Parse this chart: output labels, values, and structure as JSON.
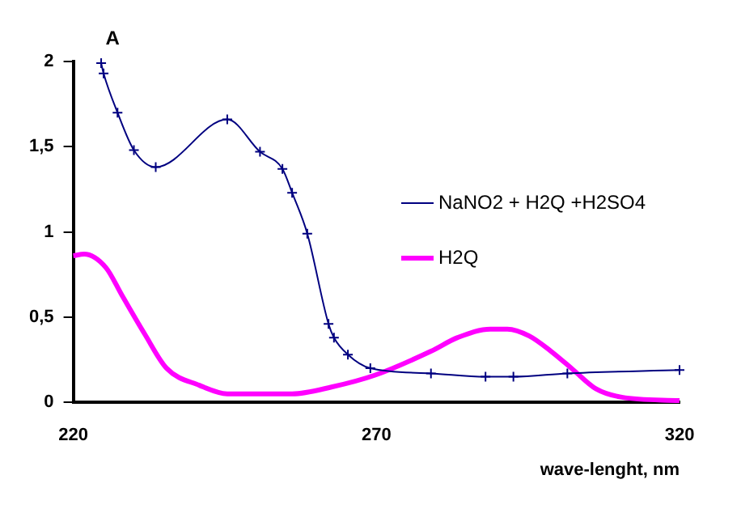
{
  "chart_data": {
    "type": "line",
    "xlabel": "wave-lenght, nm",
    "ylabel": "A",
    "xlim": [
      220,
      320
    ],
    "xticks": [
      220,
      270,
      320
    ],
    "ylim": [
      0,
      2
    ],
    "yticks": [
      0,
      {
        "value": 0.5,
        "label": "0,5"
      },
      1,
      {
        "value": 1.5,
        "label": "1,5"
      },
      2
    ],
    "grid": false,
    "legend": "right",
    "series": [
      {
        "name": "NaNO2 + H2Q +H2SO4",
        "color": "#000080",
        "marker": "cross",
        "x": [
          224.6,
          225,
          227.3,
          230,
          233.6,
          245.4,
          250.8,
          254.5,
          256.1,
          258.6,
          262.1,
          263,
          265.3,
          269,
          279,
          288,
          292.6,
          301.5,
          320
        ],
        "values": [
          1.99,
          1.93,
          1.7,
          1.48,
          1.38,
          1.66,
          1.47,
          1.37,
          1.23,
          0.99,
          0.46,
          0.38,
          0.28,
          0.2,
          0.17,
          0.15,
          0.15,
          0.17,
          0.19
        ]
      },
      {
        "name": "H2Q",
        "color": "#ff00ff",
        "marker": "none",
        "x": [
          220,
          221.8,
          225.4,
          228,
          231.8,
          235.4,
          240.8,
          245.4,
          256.1,
          262.6,
          269.8,
          279,
          283.4,
          288.8,
          291.6,
          295.2,
          298.8,
          302.5,
          306.2,
          310.5,
          320
        ],
        "values": [
          0.86,
          0.87,
          0.79,
          0.63,
          0.4,
          0.2,
          0.1,
          0.05,
          0.05,
          0.09,
          0.16,
          0.3,
          0.38,
          0.43,
          0.43,
          0.39,
          0.3,
          0.19,
          0.08,
          0.03,
          0.01
        ]
      }
    ]
  }
}
